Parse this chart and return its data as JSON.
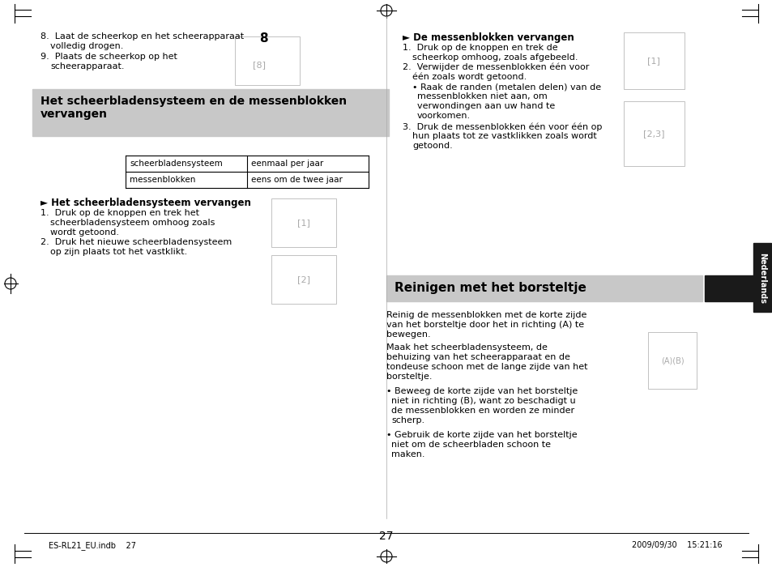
{
  "page_bg": "#ffffff",
  "page_border_color": "#000000",
  "header_mark_color": "#000000",
  "gray_box_color": "#c8c8c8",
  "dark_box_color": "#1a1a1a",
  "text_color": "#000000",
  "light_gray_text": "#555555",
  "section1_title": "Het scheerbladensysteem en de messenblokken\nvervangen",
  "section2_title": "Reinigen met het borsteltje",
  "table_row1_col1": "scheerbladensysteem",
  "table_row1_col2": "eenmaal per jaar",
  "table_row2_col1": "messenblokken",
  "table_row2_col2": "eens om de twee jaar",
  "step8_text": "8.  Laat de scheerkop en het scheerapparaat\n    volledig drogen.",
  "step9_text": "9.  Plaats de scheerkop op het\n    scheerapparaat.",
  "left_section_header": "► Het scheerbladensysteem vervangen",
  "left_step1": "1.  Druk op de knoppen en trek het\n    scheerbladensysteem omhoog zoals\n    wordt getoond.",
  "left_step2": "2.  Druk het nieuwe scheerbladensysteem\n    op zijn plaats tot het vastklikt.",
  "right_section_header": "► De messenblokken vervangen",
  "right_step1": "1.  Druk op de knoppen en trek de\n    scheerkop omhoog, zoals afgebeeld.",
  "right_step2": "2.  Verwijder de messenblokken één voor\n    één zoals wordt getoond.",
  "right_bullet": "    • Raak de randen (metalen delen) van de\n      messenblokken niet aan, om\n      verwondingen aan uw hand te\n      voorkomen.",
  "right_step3": "3.  Druk de messenblokken één voor één op\n    hun plaats tot ze vastklikken zoals wordt\n    getoond.",
  "section2_body1": "Reinig de messenblokken met de korte zijde\nvan het borsteltje door het in richting (A) te\nbewegen.",
  "section2_body2": "Maak het scheerbladensysteem, de\nbehuizing van het scheerapparaat en de\ntondeuse schoon met de lange zijde van het\nborsteltje.",
  "section2_bullet1": "• Beweeg de korte zijde van het borsteltje\n  niet in richting (B), want zo beschadigt u\n  de messenblokken en worden ze minder\n  scherp.",
  "section2_bullet2": "• Gebruik de korte zijde van het borsteltje\n  niet om de scheerbladen schoon te\n  maken.",
  "footer_left": "ES-RL21_EU.indb    27",
  "footer_right": "2009/09/30    15:21:16",
  "page_number": "27",
  "sidebar_text": "Nederlands"
}
